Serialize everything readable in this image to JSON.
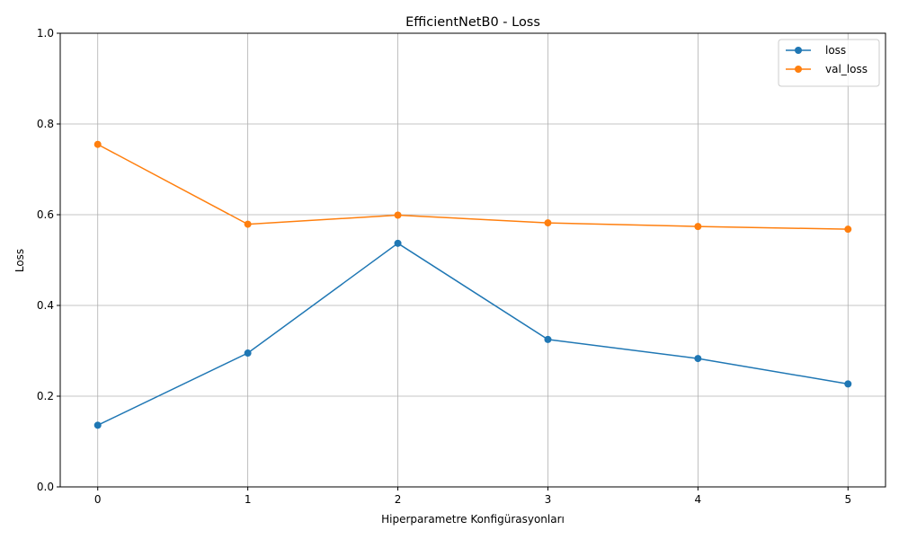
{
  "chart_data": {
    "type": "line",
    "title": "EfficientNetB0 - Loss",
    "xlabel": "Hiperparametre Konfigürasyonları",
    "ylabel": "Loss",
    "x": [
      0,
      1,
      2,
      3,
      4,
      5
    ],
    "x_ticks": [
      "0",
      "1",
      "2",
      "3",
      "4",
      "5"
    ],
    "y_ticks": [
      "0.0",
      "0.2",
      "0.4",
      "0.6",
      "0.8",
      "1.0"
    ],
    "xlim": [
      -0.25,
      5.25
    ],
    "ylim": [
      0,
      1
    ],
    "grid": true,
    "legend_position": "top-right",
    "series": [
      {
        "name": "loss",
        "color": "#1f77b4",
        "marker": "circle",
        "values": [
          0.136,
          0.295,
          0.537,
          0.325,
          0.283,
          0.227
        ]
      },
      {
        "name": "val_loss",
        "color": "#ff7f0e",
        "marker": "circle",
        "values": [
          0.755,
          0.579,
          0.599,
          0.582,
          0.574,
          0.568
        ]
      }
    ]
  }
}
